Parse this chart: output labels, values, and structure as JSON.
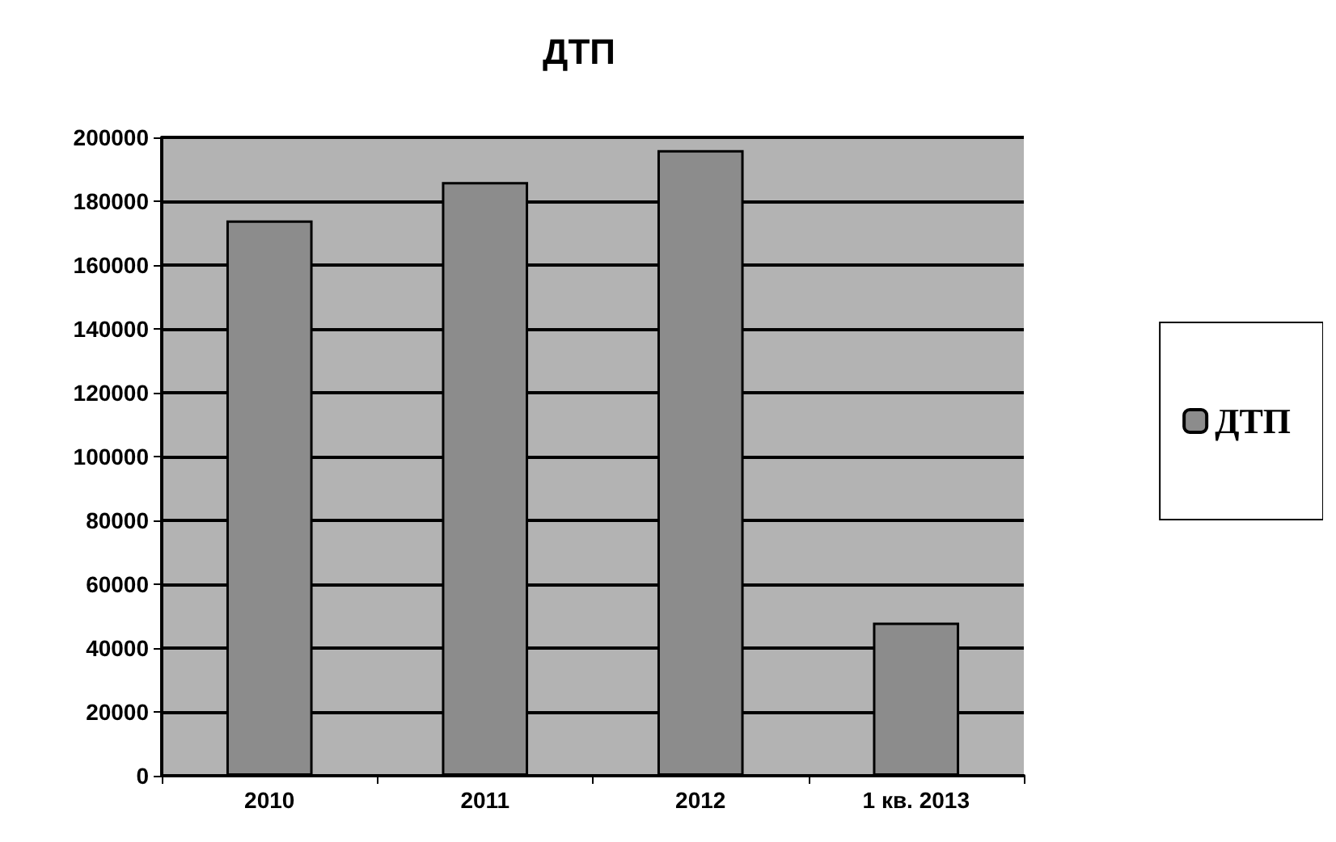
{
  "chart_data": {
    "type": "bar",
    "title": "ДТП",
    "categories": [
      "2010",
      "2011",
      "2012",
      "1 кв. 2013"
    ],
    "series": [
      {
        "name": "ДТП",
        "color": "#8c8c8c",
        "values": [
          174000,
          186000,
          196000,
          48000
        ]
      }
    ],
    "ylim": [
      0,
      200000
    ],
    "yticks": [
      0,
      20000,
      40000,
      60000,
      80000,
      100000,
      120000,
      140000,
      160000,
      180000,
      200000
    ],
    "grid": "y",
    "legend": "right"
  }
}
